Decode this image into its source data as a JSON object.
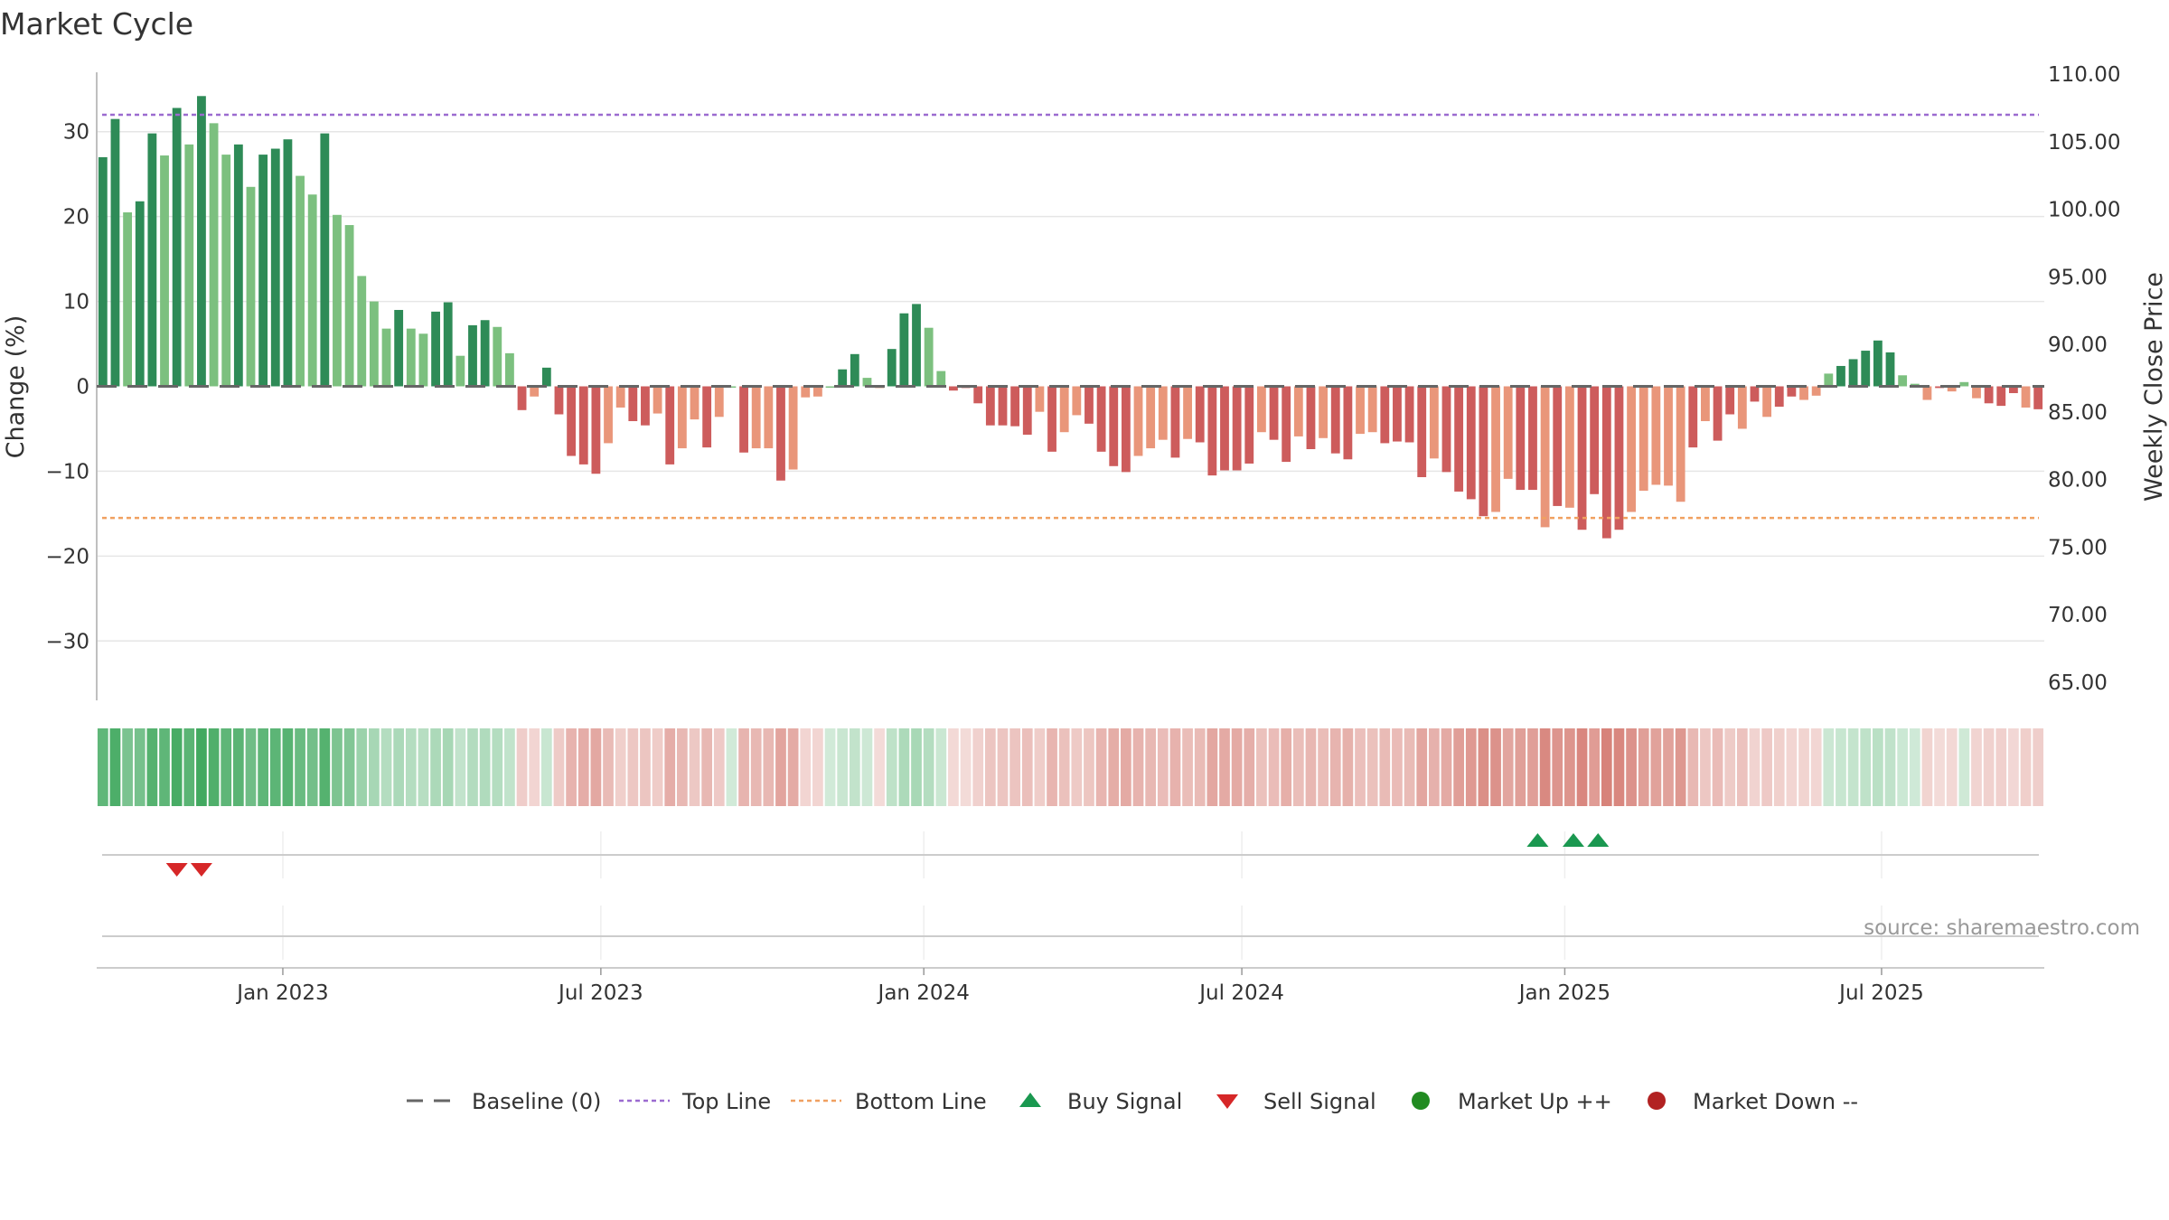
{
  "chart_data": {
    "type": "bar",
    "title": "Market Cycle",
    "y_left_label": "Change (%)",
    "y_right_label": "Weekly Close Price",
    "y_left_ticks": [
      30,
      20,
      10,
      0,
      -10,
      -20,
      -30
    ],
    "y_left_tick_labels": [
      "30",
      "20",
      "10",
      "0",
      "−10",
      "−20",
      "−30"
    ],
    "ylim_left": [
      -37,
      37
    ],
    "y_right_ticks": [
      "110.00",
      "105.00",
      "100.00",
      "95.00",
      "90.00",
      "85.00",
      "80.00",
      "75.00",
      "70.00",
      "65.00"
    ],
    "x_tick_labels": [
      "Jan 2023",
      "Jul 2023",
      "Jan 2024",
      "Jul 2024",
      "Jan 2025",
      "Jul 2025"
    ],
    "x_tick_weeks": [
      14.6,
      40.4,
      66.6,
      92.4,
      118.6,
      144.3
    ],
    "top_line": 32,
    "bottom_line": -15.5,
    "grid": true,
    "colors": {
      "up_strong": "#2e8b57",
      "up_weak": "#7cc07f",
      "down_strong": "#cd5c5c",
      "down_weak": "#e9967a",
      "top_line": "#9b6bd0",
      "bottom_line": "#f0a060",
      "buy": "#1a9850",
      "sell": "#d62728",
      "market_up": "#228b22",
      "market_down": "#b22222",
      "baseline": "#666666",
      "grid": "#e6e6e6"
    },
    "values": [
      27,
      31.5,
      20.5,
      21.8,
      29.8,
      27.2,
      32.8,
      28.5,
      34.2,
      31,
      27.3,
      28.5,
      23.5,
      27.3,
      28,
      29.1,
      24.8,
      22.6,
      29.8,
      20.2,
      19,
      13,
      10,
      6.8,
      9,
      6.8,
      6.2,
      8.8,
      9.9,
      3.6,
      7.2,
      7.8,
      7,
      3.9,
      -2.8,
      -1.2,
      2.2,
      -3.3,
      -8.2,
      -9.2,
      -10.3,
      -6.7,
      -2.5,
      -4.1,
      -4.6,
      -3.2,
      -9.2,
      -7.3,
      -3.9,
      -7.2,
      -3.6,
      0,
      -7.8,
      -7.3,
      -7.3,
      -11.1,
      -9.8,
      -1.3,
      -1.2,
      0,
      2,
      3.8,
      1,
      -0.2,
      4.4,
      8.6,
      9.7,
      6.9,
      1.8,
      -0.5,
      -0.2,
      -2,
      -4.6,
      -4.6,
      -4.7,
      -5.7,
      -3,
      -7.7,
      -5.4,
      -3.4,
      -4.4,
      -7.7,
      -9.4,
      -10.1,
      -8.2,
      -7.3,
      -6.3,
      -8.4,
      -6.2,
      -6.6,
      -10.5,
      -9.9,
      -9.9,
      -9.1,
      -5.4,
      -6.3,
      -8.9,
      -5.9,
      -7.4,
      -6.1,
      -7.9,
      -8.6,
      -5.6,
      -5.4,
      -6.7,
      -6.5,
      -6.6,
      -10.7,
      -8.5,
      -10.1,
      -12.4,
      -13.3,
      -15.3,
      -14.8,
      -10.9,
      -12.2,
      -12.2,
      -16.6,
      -14.1,
      -14.3,
      -16.9,
      -12.7,
      -17.9,
      -16.9,
      -14.8,
      -12.3,
      -11.6,
      -11.7,
      -13.6,
      -7.2,
      -4.1,
      -6.4,
      -3.3,
      -5,
      -1.8,
      -3.6,
      -2.4,
      -1.2,
      -1.6,
      -1.1,
      1.5,
      2.4,
      3.2,
      4.2,
      5.4,
      4,
      1.3,
      0.3,
      -1.6,
      -0.2,
      -0.6,
      0.5,
      -1.4,
      -2,
      -2.3,
      -0.8,
      -2.5,
      -2.7
    ],
    "strength": [
      2,
      2,
      1,
      2,
      2,
      1,
      2,
      1,
      2,
      1,
      1,
      2,
      1,
      2,
      2,
      2,
      1,
      1,
      2,
      1,
      1,
      1,
      1,
      1,
      2,
      1,
      1,
      2,
      2,
      1,
      2,
      2,
      1,
      1,
      2,
      1,
      2,
      2,
      2,
      2,
      2,
      1,
      1,
      2,
      2,
      1,
      2,
      1,
      1,
      2,
      1,
      1,
      2,
      1,
      1,
      2,
      1,
      1,
      1,
      1,
      2,
      2,
      1,
      1,
      2,
      2,
      2,
      1,
      1,
      2,
      2,
      2,
      2,
      2,
      2,
      2,
      1,
      2,
      1,
      1,
      2,
      2,
      2,
      2,
      1,
      1,
      1,
      2,
      1,
      2,
      2,
      2,
      2,
      2,
      1,
      2,
      2,
      1,
      2,
      1,
      2,
      2,
      1,
      1,
      2,
      2,
      2,
      2,
      1,
      2,
      2,
      2,
      2,
      1,
      1,
      2,
      2,
      1,
      2,
      1,
      2,
      2,
      2,
      2,
      1,
      1,
      1,
      1,
      1,
      2,
      1,
      2,
      2,
      1,
      2,
      1,
      2,
      2,
      1,
      1,
      1,
      2,
      2,
      2,
      2,
      2,
      1,
      1,
      1,
      2,
      1,
      1,
      1,
      2,
      2,
      2,
      1,
      2,
      2
    ],
    "heat_strip_scale": "green intensity follows positive change, red intensity follows negative change",
    "sell_signal_weeks": [
      6,
      8
    ],
    "buy_signal_weeks": [
      116.4,
      119.3,
      121.3
    ],
    "legend": [
      {
        "label": "Baseline (0)",
        "kind": "baseline"
      },
      {
        "label": "Top Line",
        "kind": "top"
      },
      {
        "label": "Bottom Line",
        "kind": "bottom"
      },
      {
        "label": "Buy Signal",
        "kind": "buy"
      },
      {
        "label": "Sell Signal",
        "kind": "sell"
      },
      {
        "label": "Market Up ++",
        "kind": "up"
      },
      {
        "label": "Market Down --",
        "kind": "down"
      }
    ],
    "source": "source: sharemaestro.com"
  }
}
